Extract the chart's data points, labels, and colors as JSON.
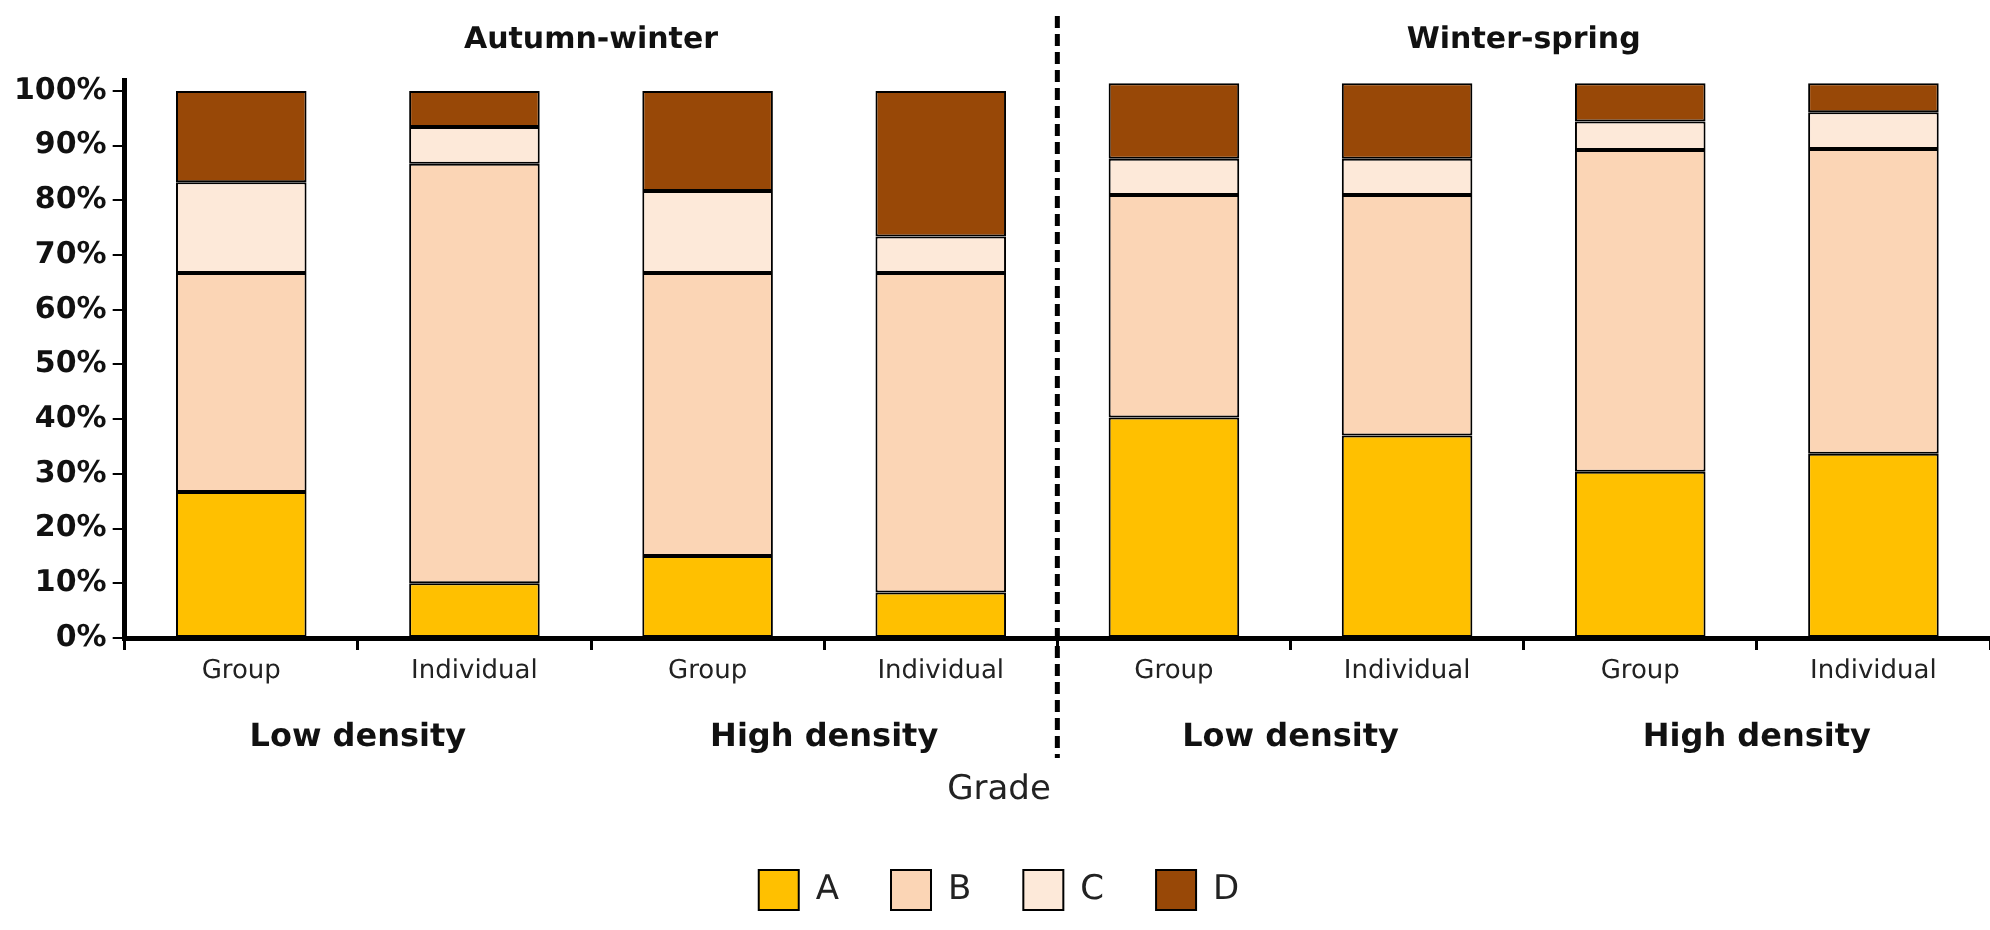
{
  "chart_data": {
    "type": "bar",
    "stacked": true,
    "categories": [
      "Group",
      "Individual",
      "Group",
      "Individual",
      "Group",
      "Individual",
      "Group",
      "Individual"
    ],
    "series": [
      {
        "name": "A",
        "color": "#ffc000",
        "values": [
          26.7,
          10,
          15,
          8.3,
          40.3,
          37,
          30.4,
          33.7
        ]
      },
      {
        "name": "B",
        "color": "#fbd5b5",
        "values": [
          40,
          76.7,
          51.7,
          58.4,
          40.7,
          44,
          58.8,
          55.7
        ]
      },
      {
        "name": "C",
        "color": "#fde9d9",
        "values": [
          16.6,
          6.7,
          15,
          6.7,
          6.6,
          6.6,
          5.2,
          6.7
        ]
      },
      {
        "name": "D",
        "color": "#984807",
        "values": [
          16.7,
          6.6,
          18.3,
          26.6,
          13.8,
          13.8,
          7,
          5.3
        ]
      }
    ],
    "legend_title": "Grade",
    "legend": "bottom",
    "grid": false,
    "ylim": [
      0,
      102
    ],
    "yticks": [
      {
        "value": 0,
        "label": "0%"
      },
      {
        "value": 10,
        "label": "10%"
      },
      {
        "value": 20,
        "label": "20%"
      },
      {
        "value": 30,
        "label": "30%"
      },
      {
        "value": 40,
        "label": "40%"
      },
      {
        "value": 50,
        "label": "50%"
      },
      {
        "value": 60,
        "label": "60%"
      },
      {
        "value": 70,
        "label": "70%"
      },
      {
        "value": 80,
        "label": "80%"
      },
      {
        "value": 90,
        "label": "90%"
      },
      {
        "value": 100,
        "label": "100%"
      }
    ],
    "annotations": [
      "Autumn-winter",
      "Winter-spring",
      "Low density",
      "High density",
      "Low density",
      "High density"
    ]
  }
}
